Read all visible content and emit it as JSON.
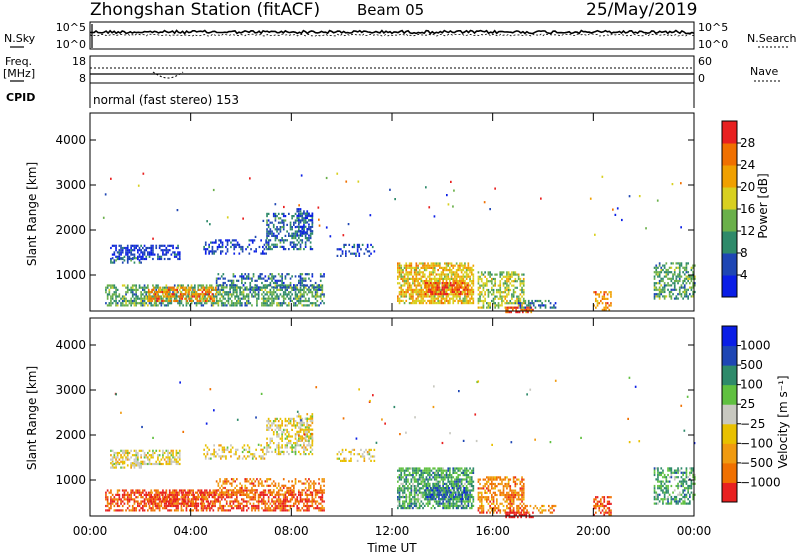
{
  "header": {
    "station": "Zhongshan Station (fitACF)",
    "beam": "Beam 05",
    "date": "25/May/2019"
  },
  "noise_panel": {
    "left_label": "N.Sky",
    "right_label": "N.Search",
    "left_ticks": [
      "10^5",
      "10^0"
    ],
    "right_ticks": [
      "10^5",
      "10^0"
    ]
  },
  "freq_panel": {
    "left_label_1": "Freq.",
    "left_label_2": "[MHz]",
    "right_label": "Nave",
    "left_ticks": [
      "18",
      "8"
    ],
    "right_ticks": [
      "60",
      "0"
    ]
  },
  "cpid": {
    "label": "CPID",
    "mode": "normal (fast stereo) 153"
  },
  "colors": {
    "power": [
      "#0a1ee6",
      "#1e46b4",
      "#2e8a6a",
      "#6ab04a",
      "#d8d020",
      "#f0a000",
      "#f07000",
      "#e82020"
    ],
    "velocity": [
      "#e82020",
      "#f07000",
      "#f09a10",
      "#e8c000",
      "#c8c8c0",
      "#60c040",
      "#2e8a6a",
      "#1e46b4",
      "#0a1ee6"
    ]
  },
  "chart_data": [
    {
      "type": "heatmap",
      "name": "power",
      "ylabel": "Slant Range [km]",
      "xlabel": "",
      "x_ticks": [
        "00:00",
        "04:00",
        "08:00",
        "12:00",
        "16:00",
        "20:00",
        "00:00"
      ],
      "y_ticks": [
        "1000",
        "2000",
        "3000",
        "4000"
      ],
      "ylim": [
        200,
        4600
      ],
      "colorbar_label": "Power [dB]",
      "colorbar_ticks": [
        "4",
        "8",
        "12",
        "16",
        "20",
        "24",
        "28"
      ],
      "colorbar_range": [
        0,
        32
      ]
    },
    {
      "type": "heatmap",
      "name": "velocity",
      "ylabel": "Slant Range [km]",
      "xlabel": "Time UT",
      "x_ticks": [
        "00:00",
        "04:00",
        "08:00",
        "12:00",
        "16:00",
        "20:00",
        "00:00"
      ],
      "y_ticks": [
        "1000",
        "2000",
        "3000",
        "4000"
      ],
      "ylim": [
        200,
        4600
      ],
      "colorbar_label": "Velocity [m s⁻¹]",
      "colorbar_ticks": [
        "1000",
        "500",
        "100",
        "25",
        "−25",
        "−100",
        "−500",
        "−1000"
      ]
    }
  ]
}
